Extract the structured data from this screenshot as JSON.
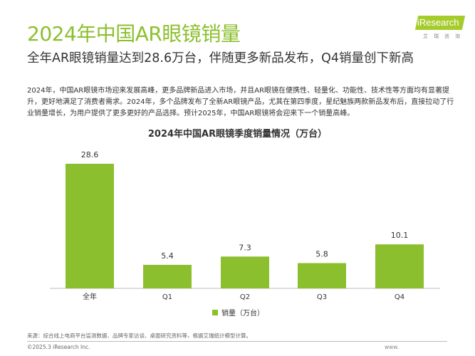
{
  "header": {
    "title": "2024年中国AR眼镜销量",
    "subtitle": "全年AR眼镜销量达到28.6万台，伴随更多新品发布，Q4销量创下新高"
  },
  "logo": {
    "text": "iResearch",
    "sub": "艾瑞咨询"
  },
  "paragraph": "2024年，中国AR眼镜市场迎来发展高峰，更多品牌新品进入市场，并且AR眼镜在便携性、轻量化、功能性、技术性等方面均有显著提升，更好地满足了消费者需求。2024年，多个品牌发布了全新AR眼镜产品，尤其在第四季度，星纪魅族两款新品发布后，直接拉动了行业销量增长，为用户提供了更多更好的产品选择。预计2025年，中国AR眼镜将会迎来下一个销量高峰。",
  "chart_data": {
    "type": "bar",
    "title": "2024年中国AR眼镜季度销量情况（万台）",
    "categories": [
      "全年",
      "Q1",
      "Q2",
      "Q3",
      "Q4"
    ],
    "series": [
      {
        "name": "销量（万台）",
        "values": [
          28.6,
          5.4,
          7.3,
          5.8,
          10.1
        ]
      }
    ],
    "ylim": [
      0,
      28.6
    ],
    "grid": false,
    "legend": "bottom",
    "color": "#8cbf2e"
  },
  "footer": {
    "source": "来源：综合线上电商平台监测数据、品牌专家访谈、桌面研究资料等，根据艾瑞统计模型计算。",
    "copyright": "©2025.3 iResearch Inc.",
    "www": "www."
  }
}
